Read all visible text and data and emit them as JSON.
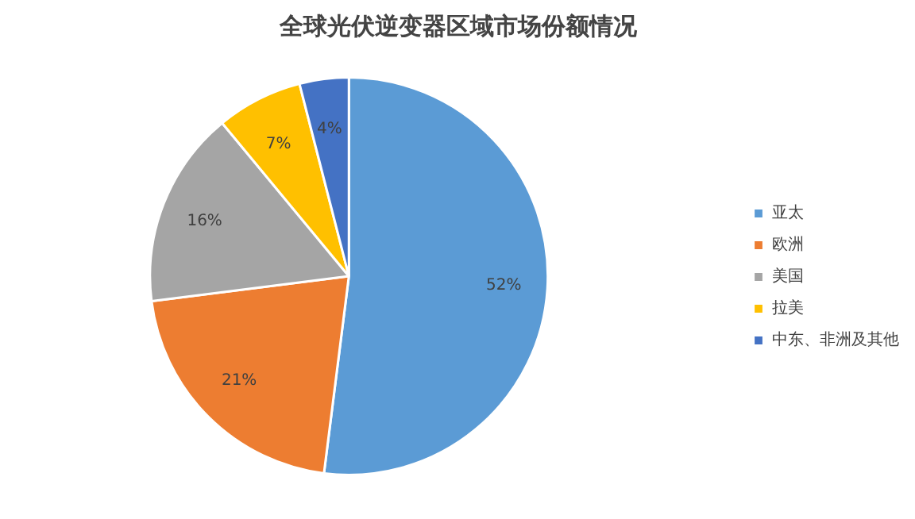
{
  "chart_data": {
    "type": "pie",
    "title": "全球光伏逆变器区域市场份额情况",
    "categories": [
      "亚太",
      "欧洲",
      "美国",
      "拉美",
      "中东、非洲及其他"
    ],
    "values": [
      52,
      21,
      16,
      7,
      4
    ],
    "colors": [
      "#5b9bd5",
      "#ed7d31",
      "#a5a5a5",
      "#ffc000",
      "#4472c4"
    ],
    "value_labels": [
      "52%",
      "21%",
      "16%",
      "7%",
      "4%"
    ],
    "legend": "right"
  }
}
